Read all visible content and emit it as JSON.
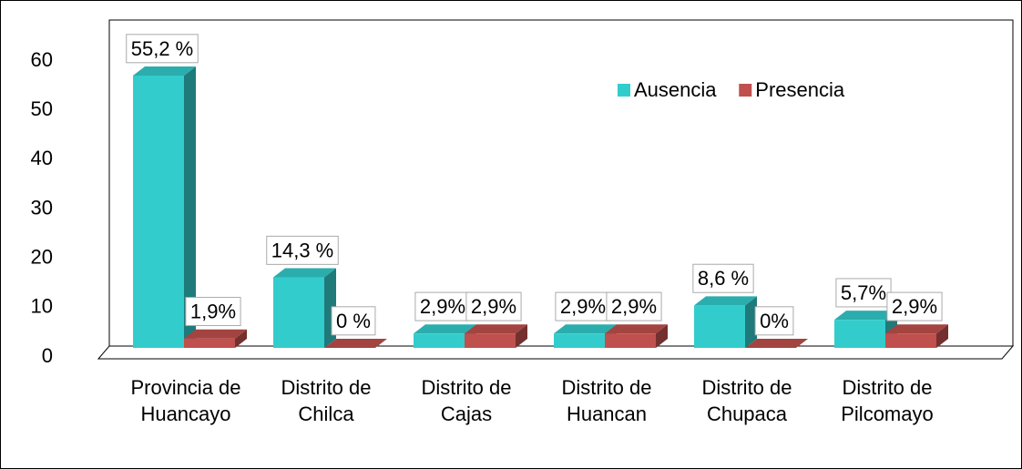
{
  "chart_data": {
    "type": "bar3d",
    "categories": [
      "Provincia de Huancayo",
      "Distrito de Chilca",
      "Distrito de Cajas",
      "Distrito de Huancan",
      "Distrito de Chupaca",
      "Distrito de Pilcomayo"
    ],
    "series": [
      {
        "name": "Ausencia",
        "color": "#33cccc",
        "values": [
          55.2,
          14.3,
          2.9,
          2.9,
          8.6,
          5.7
        ],
        "value_labels": [
          "55,2 %",
          "14,3 %",
          "2,9%",
          "2,9%",
          "8,6 %",
          "5,7%"
        ]
      },
      {
        "name": "Presencia",
        "color": "#c0504d",
        "values": [
          1.9,
          0,
          2.9,
          2.9,
          0,
          2.9
        ],
        "value_labels": [
          "1,9%",
          "0 %",
          "2,9%",
          "2,9%",
          "0%",
          "2,9%"
        ]
      }
    ],
    "ylim": [
      0,
      60
    ],
    "yticks": [
      0,
      10,
      20,
      30,
      40,
      50,
      60
    ],
    "grid": false
  }
}
